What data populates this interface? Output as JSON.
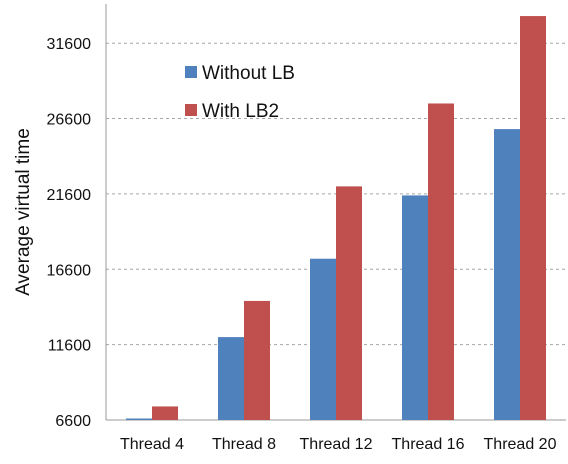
{
  "chart_data": {
    "type": "bar",
    "title": "",
    "xlabel": "",
    "ylabel": "Average virtual time",
    "categories": [
      "Thread 4",
      "Thread 8",
      "Thread 12",
      "Thread 16",
      "Thread 20"
    ],
    "series": [
      {
        "name": "Without LB",
        "color": "#4F81BD",
        "values": [
          6700,
          12100,
          17300,
          21500,
          25900
        ]
      },
      {
        "name": "With LB2",
        "color": "#C0504D",
        "values": [
          7500,
          14500,
          22100,
          27600,
          33400
        ]
      }
    ],
    "ylim": [
      6600,
      34200
    ],
    "yticks": [
      6600,
      11600,
      16600,
      21600,
      26600,
      31600
    ],
    "grid": true,
    "legend": "top-left"
  }
}
